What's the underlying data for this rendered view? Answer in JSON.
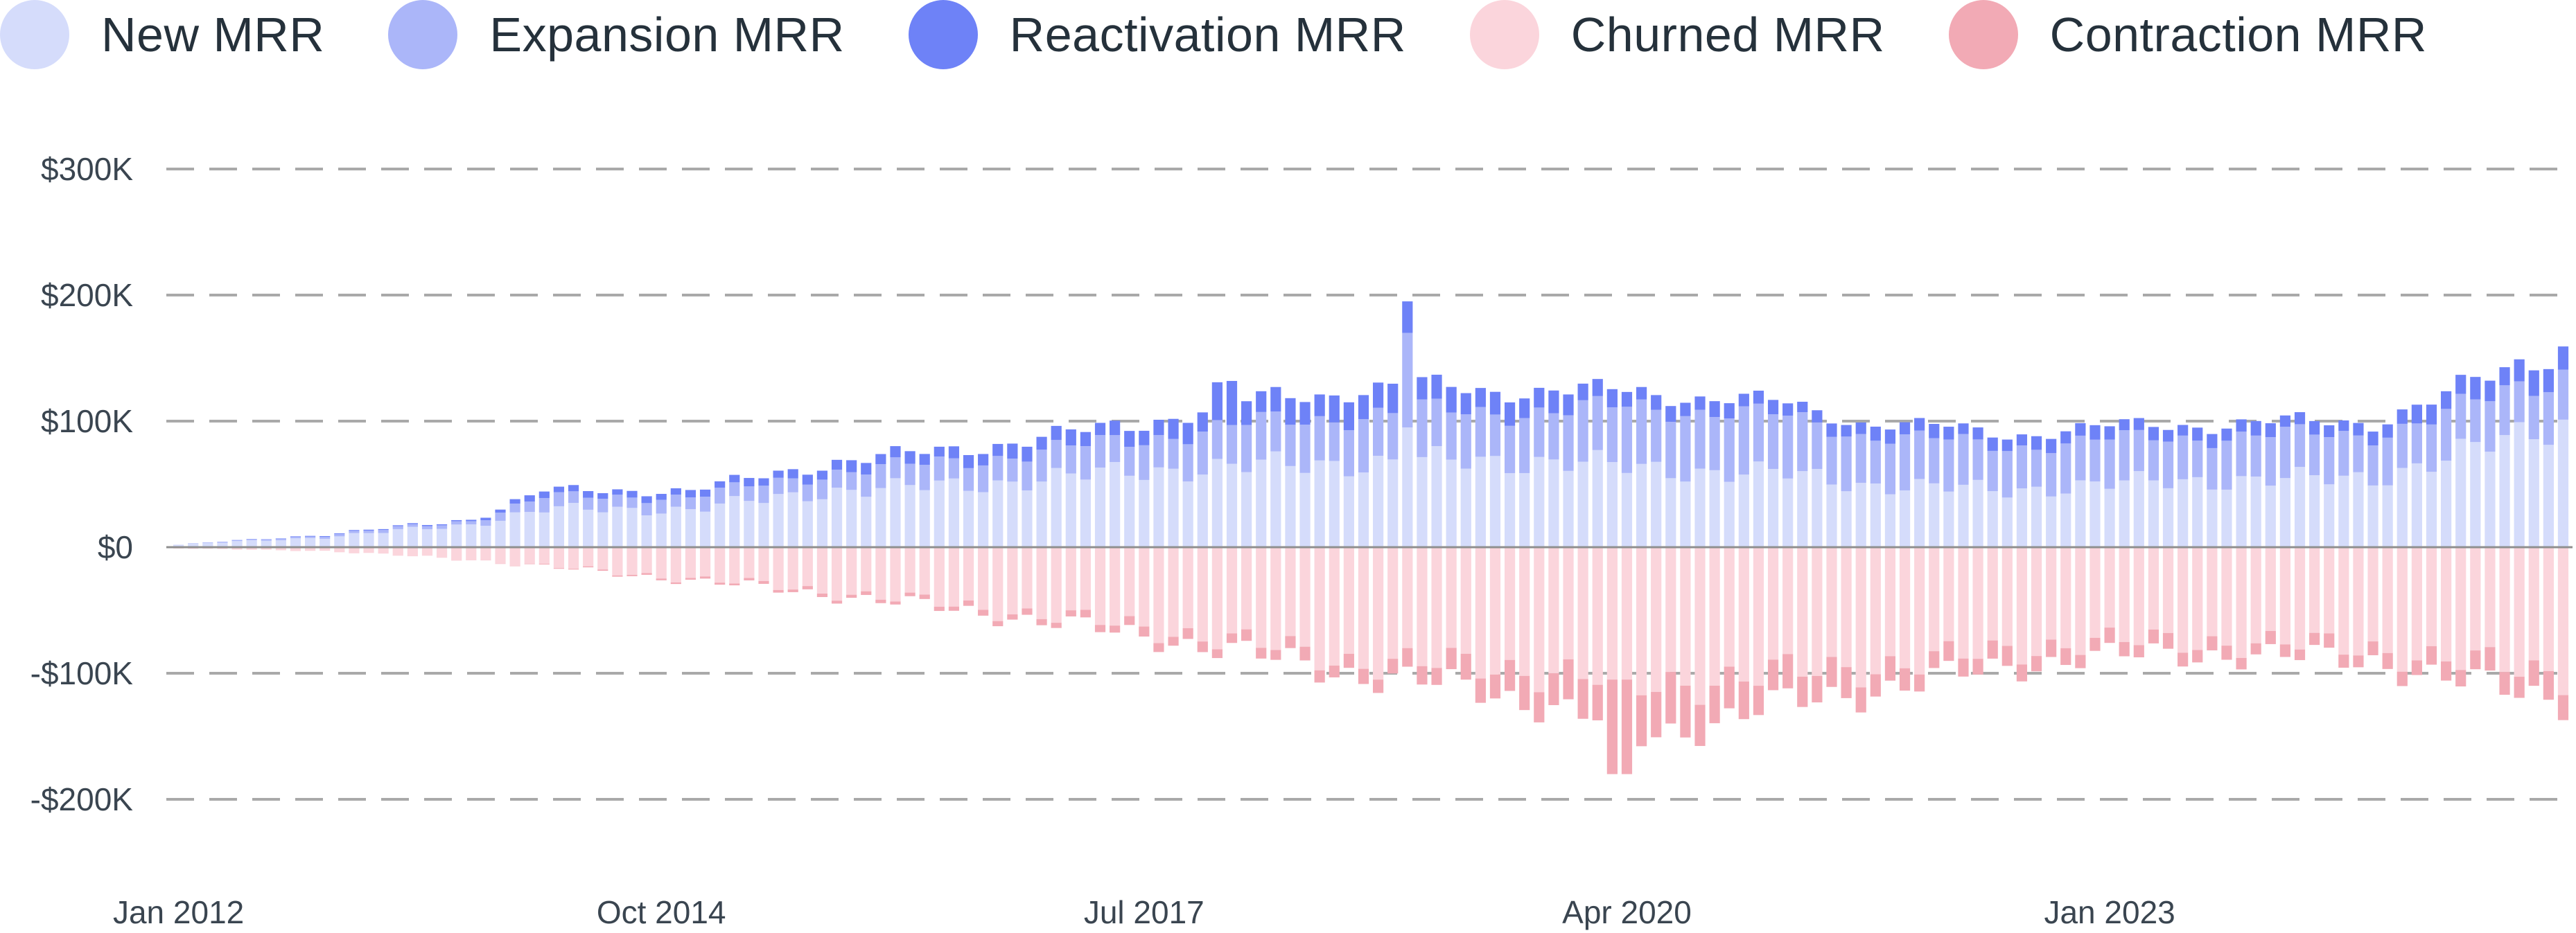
{
  "chart_data": {
    "type": "bar",
    "stacked": true,
    "title": "",
    "xlabel": "",
    "ylabel": "",
    "ylim": [
      -200000,
      300000
    ],
    "grid": true,
    "legend_position": "top-left",
    "y_ticks": [
      {
        "value": 300000,
        "label": "$300K"
      },
      {
        "value": 200000,
        "label": "$200K"
      },
      {
        "value": 100000,
        "label": "$100K"
      },
      {
        "value": 0,
        "label": "$0"
      },
      {
        "value": -100000,
        "label": "-$100K"
      },
      {
        "value": -200000,
        "label": "-$200K"
      }
    ],
    "x_ticks": [
      {
        "index": 0,
        "label": "Jan 2012"
      },
      {
        "index": 33,
        "label": "Oct 2014"
      },
      {
        "index": 66,
        "label": "Jul 2017"
      },
      {
        "index": 99,
        "label": "Apr 2020"
      },
      {
        "index": 132,
        "label": "Jan 2023"
      }
    ],
    "x_start": "2012-01",
    "x_end": "2025-08",
    "categories_count": 164,
    "series": [
      {
        "name": "New MRR",
        "color": "#d5dcfb",
        "sign": 1,
        "anchors": [
          [
            0,
            2000
          ],
          [
            10,
            8000
          ],
          [
            20,
            18000
          ],
          [
            25,
            30000
          ],
          [
            35,
            30000
          ],
          [
            45,
            45000
          ],
          [
            55,
            50000
          ],
          [
            65,
            60000
          ],
          [
            75,
            65000
          ],
          [
            85,
            68000
          ],
          [
            95,
            68000
          ],
          [
            100,
            62000
          ],
          [
            110,
            58000
          ],
          [
            115,
            50000
          ],
          [
            125,
            45000
          ],
          [
            135,
            52000
          ],
          [
            150,
            55000
          ],
          [
            155,
            70000
          ],
          [
            163,
            100000
          ]
        ]
      },
      {
        "name": "Expansion MRR",
        "color": "#abb6f9",
        "sign": 1,
        "anchors": [
          [
            0,
            0
          ],
          [
            20,
            3000
          ],
          [
            25,
            10000
          ],
          [
            35,
            10000
          ],
          [
            45,
            15000
          ],
          [
            55,
            20000
          ],
          [
            65,
            25000
          ],
          [
            75,
            35000
          ],
          [
            85,
            40000
          ],
          [
            95,
            40000
          ],
          [
            100,
            50000
          ],
          [
            110,
            45000
          ],
          [
            115,
            40000
          ],
          [
            125,
            35000
          ],
          [
            135,
            35000
          ],
          [
            150,
            35000
          ],
          [
            155,
            35000
          ],
          [
            163,
            40000
          ]
        ]
      },
      {
        "name": "Reactivation MRR",
        "color": "#6e82f7",
        "sign": 1,
        "anchors": [
          [
            0,
            0
          ],
          [
            20,
            1000
          ],
          [
            25,
            5000
          ],
          [
            35,
            5000
          ],
          [
            45,
            8000
          ],
          [
            55,
            10000
          ],
          [
            65,
            12000
          ],
          [
            75,
            20000
          ],
          [
            85,
            20000
          ],
          [
            95,
            15000
          ],
          [
            100,
            12000
          ],
          [
            110,
            10000
          ],
          [
            115,
            10000
          ],
          [
            125,
            10000
          ],
          [
            135,
            10000
          ],
          [
            150,
            10000
          ],
          [
            155,
            15000
          ],
          [
            163,
            20000
          ]
        ]
      },
      {
        "name": "Churned MRR",
        "color": "#fbd5dc",
        "sign": -1,
        "anchors": [
          [
            0,
            1000
          ],
          [
            10,
            3000
          ],
          [
            20,
            10000
          ],
          [
            30,
            20000
          ],
          [
            40,
            30000
          ],
          [
            50,
            42000
          ],
          [
            60,
            55000
          ],
          [
            70,
            70000
          ],
          [
            80,
            90000
          ],
          [
            90,
            95000
          ],
          [
            95,
            100000
          ],
          [
            100,
            110000
          ],
          [
            110,
            100000
          ],
          [
            120,
            90000
          ],
          [
            130,
            75000
          ],
          [
            140,
            75000
          ],
          [
            150,
            80000
          ],
          [
            155,
            90000
          ],
          [
            163,
            100000
          ]
        ]
      },
      {
        "name": "Contraction MRR",
        "color": "#f2aab5",
        "sign": -1,
        "anchors": [
          [
            0,
            0
          ],
          [
            20,
            0
          ],
          [
            30,
            1000
          ],
          [
            40,
            2000
          ],
          [
            50,
            3000
          ],
          [
            60,
            5000
          ],
          [
            70,
            8000
          ],
          [
            80,
            10000
          ],
          [
            90,
            20000
          ],
          [
            95,
            30000
          ],
          [
            100,
            40000
          ],
          [
            110,
            25000
          ],
          [
            120,
            15000
          ],
          [
            130,
            12000
          ],
          [
            140,
            10000
          ],
          [
            150,
            10000
          ],
          [
            155,
            15000
          ],
          [
            163,
            20000
          ]
        ]
      }
    ],
    "overrides": [
      {
        "index": 84,
        "series": "New MRR",
        "value": 95000
      },
      {
        "index": 84,
        "series": "Expansion MRR",
        "value": 75000
      },
      {
        "index": 84,
        "series": "Reactivation MRR",
        "value": 25000
      },
      {
        "index": 99,
        "series": "Churned MRR",
        "value": 105000
      },
      {
        "index": 99,
        "series": "Contraction MRR",
        "value": 75000
      },
      {
        "index": 98,
        "series": "Churned MRR",
        "value": 105000
      },
      {
        "index": 98,
        "series": "Contraction MRR",
        "value": 75000
      },
      {
        "index": 72,
        "series": "Reactivation MRR",
        "value": 35000
      },
      {
        "index": 71,
        "series": "Reactivation MRR",
        "value": 30000
      }
    ]
  }
}
